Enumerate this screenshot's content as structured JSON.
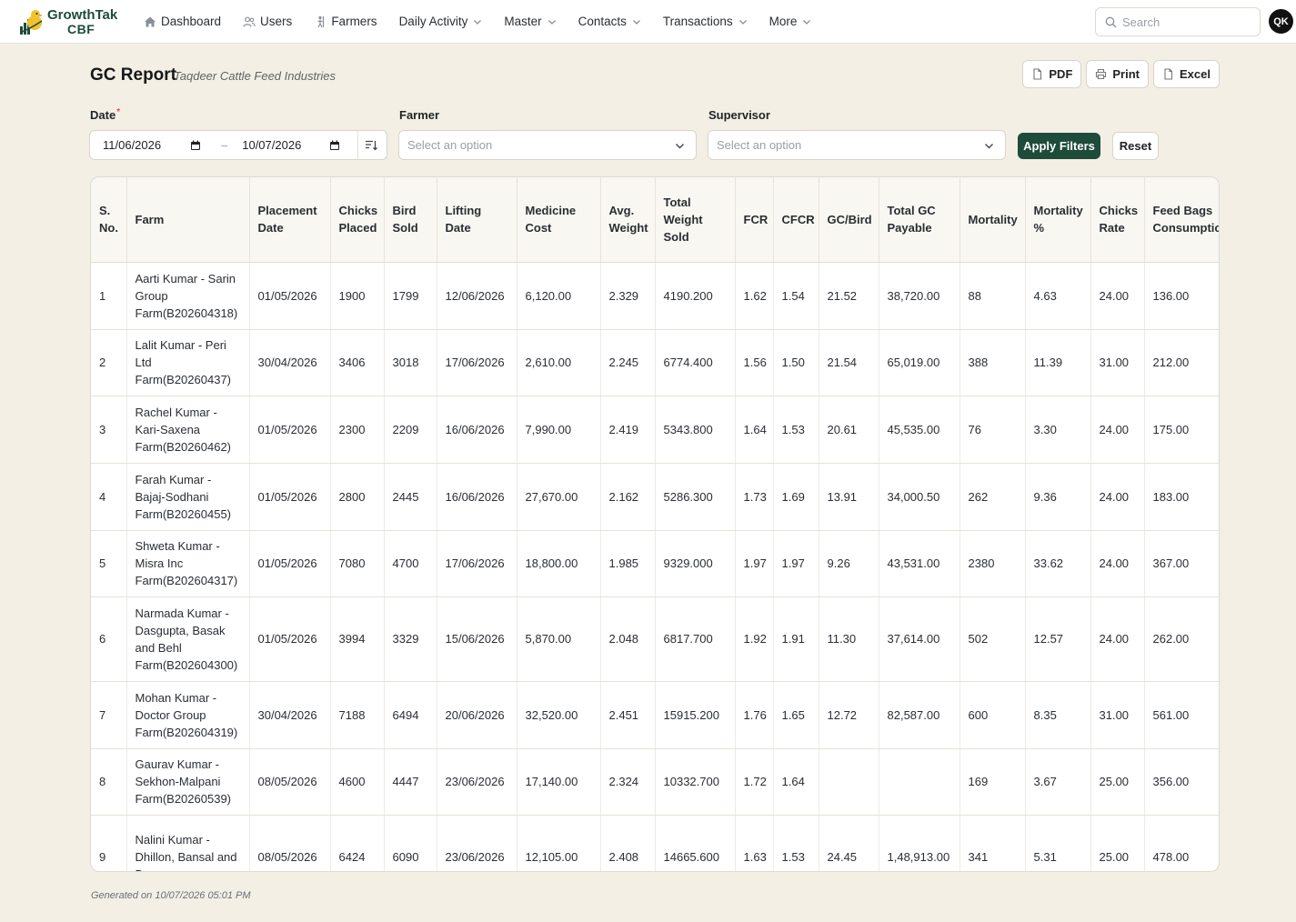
{
  "app": {
    "brand_line1": "GrowthTak",
    "brand_line2": "CBF",
    "avatar_initials": "QK",
    "search_placeholder": "Search",
    "accent_color": "#1e4b3a"
  },
  "nav": {
    "dashboard": "Dashboard",
    "users": "Users",
    "farmers": "Farmers",
    "daily_activity": "Daily Activity",
    "master": "Master",
    "contacts": "Contacts",
    "transactions": "Transactions",
    "more": "More"
  },
  "header": {
    "title": "GC Report",
    "subtitle": "Taqdeer Cattle Feed Industries",
    "pdf": "PDF",
    "print": "Print",
    "excel": "Excel"
  },
  "filters": {
    "date_label": "Date",
    "date_required": "*",
    "date_from": "11/06/2026",
    "date_to": "10/07/2026",
    "date_sep": "–",
    "farmer_label": "Farmer",
    "farmer_placeholder": "Select an option",
    "supervisor_label": "Supervisor",
    "supervisor_placeholder": "Select an option",
    "apply": "Apply Filters",
    "reset": "Reset"
  },
  "table": {
    "headers": {
      "sno": "S. No.",
      "farm": "Farm",
      "placement_date": "Placement Date",
      "chicks_placed": "Chicks Placed",
      "bird_sold": "Bird Sold",
      "lifting_date": "Lifting Date",
      "medicine_cost": "Medicine Cost",
      "avg_weight": "Avg. Weight",
      "total_weight_sold": "Total Weight Sold",
      "fcr": "FCR",
      "cfcr": "CFCR",
      "gc_bird": "GC/Bird",
      "total_gc_payable": "Total GC Payable",
      "mortality": "Mortality",
      "mortality_pct": "Mortality %",
      "chicks_rate": "Chicks Rate",
      "feed_bags": "Feed Bags Consumption"
    },
    "rows": [
      [
        "1",
        "Aarti Kumar - Sarin Group Farm(B202604318)",
        "01/05/2026",
        "1900",
        "1799",
        "12/06/2026",
        "6,120.00",
        "2.329",
        "4190.200",
        "1.62",
        "1.54",
        "21.52",
        "38,720.00",
        "88",
        "4.63",
        "24.00",
        "136.00"
      ],
      [
        "2",
        "Lalit Kumar - Peri Ltd Farm(B20260437)",
        "30/04/2026",
        "3406",
        "3018",
        "17/06/2026",
        "2,610.00",
        "2.245",
        "6774.400",
        "1.56",
        "1.50",
        "21.54",
        "65,019.00",
        "388",
        "11.39",
        "31.00",
        "212.00"
      ],
      [
        "3",
        "Rachel Kumar - Kari-Saxena Farm(B20260462)",
        "01/05/2026",
        "2300",
        "2209",
        "16/06/2026",
        "7,990.00",
        "2.419",
        "5343.800",
        "1.64",
        "1.53",
        "20.61",
        "45,535.00",
        "76",
        "3.30",
        "24.00",
        "175.00"
      ],
      [
        "4",
        "Farah Kumar - Bajaj-Sodhani Farm(B20260455)",
        "01/05/2026",
        "2800",
        "2445",
        "16/06/2026",
        "27,670.00",
        "2.162",
        "5286.300",
        "1.73",
        "1.69",
        "13.91",
        "34,000.50",
        "262",
        "9.36",
        "24.00",
        "183.00"
      ],
      [
        "5",
        "Shweta Kumar - Misra Inc Farm(B202604317)",
        "01/05/2026",
        "7080",
        "4700",
        "17/06/2026",
        "18,800.00",
        "1.985",
        "9329.000",
        "1.97",
        "1.97",
        "9.26",
        "43,531.00",
        "2380",
        "33.62",
        "24.00",
        "367.00"
      ],
      [
        "6",
        "Narmada Kumar - Dasgupta, Basak and Behl Farm(B202604300)",
        "01/05/2026",
        "3994",
        "3329",
        "15/06/2026",
        "5,870.00",
        "2.048",
        "6817.700",
        "1.92",
        "1.91",
        "11.30",
        "37,614.00",
        "502",
        "12.57",
        "24.00",
        "262.00"
      ],
      [
        "7",
        "Mohan Kumar - Doctor Group Farm(B202604319)",
        "30/04/2026",
        "7188",
        "6494",
        "20/06/2026",
        "32,520.00",
        "2.451",
        "15915.200",
        "1.76",
        "1.65",
        "12.72",
        "82,587.00",
        "600",
        "8.35",
        "31.00",
        "561.00"
      ],
      [
        "8",
        "Gaurav Kumar - Sekhon-Malpani Farm(B20260539)",
        "08/05/2026",
        "4600",
        "4447",
        "23/06/2026",
        "17,140.00",
        "2.324",
        "10332.700",
        "1.72",
        "1.64",
        "",
        "",
        "169",
        "3.67",
        "25.00",
        "356.00"
      ],
      [
        "9",
        "Nalini Kumar - Dhillon, Bansal and Dugar",
        "08/05/2026",
        "6424",
        "6090",
        "23/06/2026",
        "12,105.00",
        "2.408",
        "14665.600",
        "1.63",
        "1.53",
        "24.45",
        "1,48,913.00",
        "341",
        "5.31",
        "25.00",
        "478.00"
      ]
    ]
  },
  "footer": {
    "generated": "Generated on 10/07/2026 05:01 PM"
  }
}
